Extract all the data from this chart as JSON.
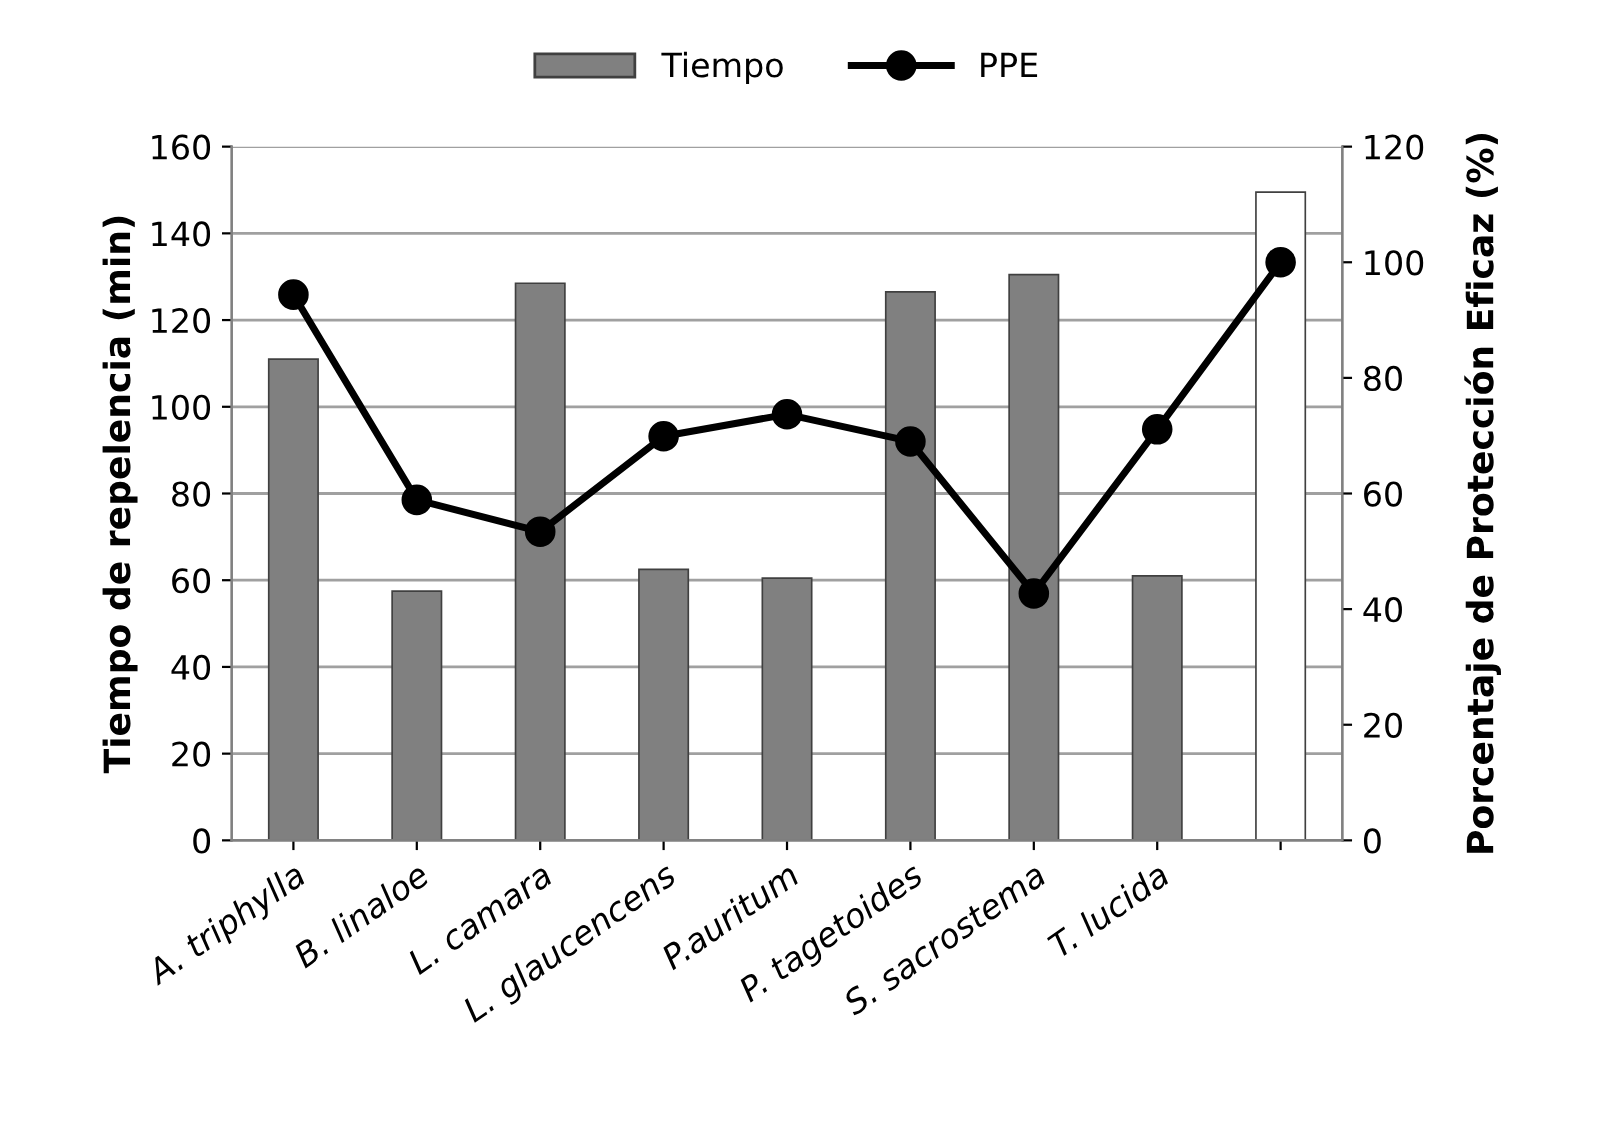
{
  "chart_data": {
    "type": "bar",
    "ylabel": "Tiempo de repelencia (min)",
    "y2label": "Porcentaje de Protección Eficaz (%)",
    "categories": [
      "A. triphylla",
      "B. linaloe",
      "L. camara",
      "L. glaucencens",
      "P.auritum",
      "P. tagetoides",
      "S. sacrostema",
      "T. lucida",
      null
    ],
    "series": [
      {
        "name": "Tiempo",
        "color": "#808080",
        "colors": [
          "#808080",
          "#808080",
          "#808080",
          "#808080",
          "#808080",
          "#808080",
          "#808080",
          "#808080",
          "#ffffff"
        ],
        "values": [
          111,
          57.5,
          128.5,
          62.5,
          60.5,
          126.5,
          130.5,
          61,
          149.5
        ]
      },
      {
        "name": "PPE",
        "type": "line",
        "axis": "y2",
        "color": "#000000",
        "marker": "circle",
        "line_style": "solid",
        "values": [
          94.4,
          58.9,
          53.4,
          69.9,
          73.7,
          69,
          42.7,
          71.1,
          100
        ]
      }
    ],
    "ylim": [
      0,
      160
    ],
    "yticks": [
      0,
      20,
      40,
      60,
      80,
      100,
      120,
      140,
      160
    ],
    "y2lim": [
      0,
      120
    ],
    "y2ticks": [
      0,
      20,
      40,
      60,
      80,
      100,
      120
    ],
    "grid": "y",
    "legend": "top"
  }
}
